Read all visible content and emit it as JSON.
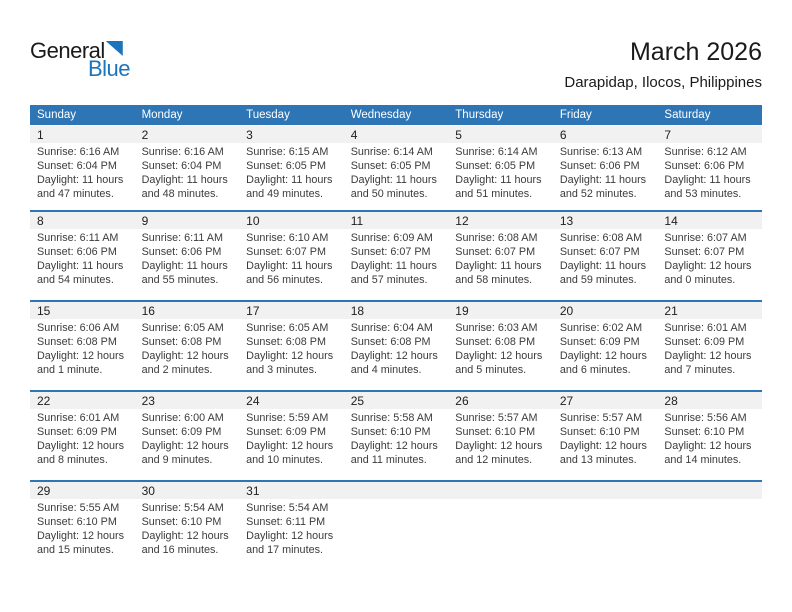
{
  "logo": {
    "word_top": "General",
    "word_bottom": "Blue"
  },
  "header": {
    "title": "March 2026",
    "subtitle": "Darapidap, Ilocos, Philippines"
  },
  "colors": {
    "header_bg": "#2E75B6",
    "separator": "#2E75B6",
    "band_bg": "#F1F1F1",
    "logo_blue": "#1C75BC",
    "text": "#3B3B3B",
    "title": "#1A1A1A",
    "header_text": "#FFFFFF"
  },
  "calendar": {
    "day_headers": [
      "Sunday",
      "Monday",
      "Tuesday",
      "Wednesday",
      "Thursday",
      "Friday",
      "Saturday"
    ],
    "weeks": [
      {
        "cells": [
          {
            "day": "1",
            "sunrise": "Sunrise: 6:16 AM",
            "sunset": "Sunset: 6:04 PM",
            "daylight_line1": "Daylight: 11 hours",
            "daylight_line2": "and 47 minutes."
          },
          {
            "day": "2",
            "sunrise": "Sunrise: 6:16 AM",
            "sunset": "Sunset: 6:04 PM",
            "daylight_line1": "Daylight: 11 hours",
            "daylight_line2": "and 48 minutes."
          },
          {
            "day": "3",
            "sunrise": "Sunrise: 6:15 AM",
            "sunset": "Sunset: 6:05 PM",
            "daylight_line1": "Daylight: 11 hours",
            "daylight_line2": "and 49 minutes."
          },
          {
            "day": "4",
            "sunrise": "Sunrise: 6:14 AM",
            "sunset": "Sunset: 6:05 PM",
            "daylight_line1": "Daylight: 11 hours",
            "daylight_line2": "and 50 minutes."
          },
          {
            "day": "5",
            "sunrise": "Sunrise: 6:14 AM",
            "sunset": "Sunset: 6:05 PM",
            "daylight_line1": "Daylight: 11 hours",
            "daylight_line2": "and 51 minutes."
          },
          {
            "day": "6",
            "sunrise": "Sunrise: 6:13 AM",
            "sunset": "Sunset: 6:06 PM",
            "daylight_line1": "Daylight: 11 hours",
            "daylight_line2": "and 52 minutes."
          },
          {
            "day": "7",
            "sunrise": "Sunrise: 6:12 AM",
            "sunset": "Sunset: 6:06 PM",
            "daylight_line1": "Daylight: 11 hours",
            "daylight_line2": "and 53 minutes."
          }
        ]
      },
      {
        "cells": [
          {
            "day": "8",
            "sunrise": "Sunrise: 6:11 AM",
            "sunset": "Sunset: 6:06 PM",
            "daylight_line1": "Daylight: 11 hours",
            "daylight_line2": "and 54 minutes."
          },
          {
            "day": "9",
            "sunrise": "Sunrise: 6:11 AM",
            "sunset": "Sunset: 6:06 PM",
            "daylight_line1": "Daylight: 11 hours",
            "daylight_line2": "and 55 minutes."
          },
          {
            "day": "10",
            "sunrise": "Sunrise: 6:10 AM",
            "sunset": "Sunset: 6:07 PM",
            "daylight_line1": "Daylight: 11 hours",
            "daylight_line2": "and 56 minutes."
          },
          {
            "day": "11",
            "sunrise": "Sunrise: 6:09 AM",
            "sunset": "Sunset: 6:07 PM",
            "daylight_line1": "Daylight: 11 hours",
            "daylight_line2": "and 57 minutes."
          },
          {
            "day": "12",
            "sunrise": "Sunrise: 6:08 AM",
            "sunset": "Sunset: 6:07 PM",
            "daylight_line1": "Daylight: 11 hours",
            "daylight_line2": "and 58 minutes."
          },
          {
            "day": "13",
            "sunrise": "Sunrise: 6:08 AM",
            "sunset": "Sunset: 6:07 PM",
            "daylight_line1": "Daylight: 11 hours",
            "daylight_line2": "and 59 minutes."
          },
          {
            "day": "14",
            "sunrise": "Sunrise: 6:07 AM",
            "sunset": "Sunset: 6:07 PM",
            "daylight_line1": "Daylight: 12 hours",
            "daylight_line2": "and 0 minutes."
          }
        ]
      },
      {
        "cells": [
          {
            "day": "15",
            "sunrise": "Sunrise: 6:06 AM",
            "sunset": "Sunset: 6:08 PM",
            "daylight_line1": "Daylight: 12 hours",
            "daylight_line2": "and 1 minute."
          },
          {
            "day": "16",
            "sunrise": "Sunrise: 6:05 AM",
            "sunset": "Sunset: 6:08 PM",
            "daylight_line1": "Daylight: 12 hours",
            "daylight_line2": "and 2 minutes."
          },
          {
            "day": "17",
            "sunrise": "Sunrise: 6:05 AM",
            "sunset": "Sunset: 6:08 PM",
            "daylight_line1": "Daylight: 12 hours",
            "daylight_line2": "and 3 minutes."
          },
          {
            "day": "18",
            "sunrise": "Sunrise: 6:04 AM",
            "sunset": "Sunset: 6:08 PM",
            "daylight_line1": "Daylight: 12 hours",
            "daylight_line2": "and 4 minutes."
          },
          {
            "day": "19",
            "sunrise": "Sunrise: 6:03 AM",
            "sunset": "Sunset: 6:08 PM",
            "daylight_line1": "Daylight: 12 hours",
            "daylight_line2": "and 5 minutes."
          },
          {
            "day": "20",
            "sunrise": "Sunrise: 6:02 AM",
            "sunset": "Sunset: 6:09 PM",
            "daylight_line1": "Daylight: 12 hours",
            "daylight_line2": "and 6 minutes."
          },
          {
            "day": "21",
            "sunrise": "Sunrise: 6:01 AM",
            "sunset": "Sunset: 6:09 PM",
            "daylight_line1": "Daylight: 12 hours",
            "daylight_line2": "and 7 minutes."
          }
        ]
      },
      {
        "cells": [
          {
            "day": "22",
            "sunrise": "Sunrise: 6:01 AM",
            "sunset": "Sunset: 6:09 PM",
            "daylight_line1": "Daylight: 12 hours",
            "daylight_line2": "and 8 minutes."
          },
          {
            "day": "23",
            "sunrise": "Sunrise: 6:00 AM",
            "sunset": "Sunset: 6:09 PM",
            "daylight_line1": "Daylight: 12 hours",
            "daylight_line2": "and 9 minutes."
          },
          {
            "day": "24",
            "sunrise": "Sunrise: 5:59 AM",
            "sunset": "Sunset: 6:09 PM",
            "daylight_line1": "Daylight: 12 hours",
            "daylight_line2": "and 10 minutes."
          },
          {
            "day": "25",
            "sunrise": "Sunrise: 5:58 AM",
            "sunset": "Sunset: 6:10 PM",
            "daylight_line1": "Daylight: 12 hours",
            "daylight_line2": "and 11 minutes."
          },
          {
            "day": "26",
            "sunrise": "Sunrise: 5:57 AM",
            "sunset": "Sunset: 6:10 PM",
            "daylight_line1": "Daylight: 12 hours",
            "daylight_line2": "and 12 minutes."
          },
          {
            "day": "27",
            "sunrise": "Sunrise: 5:57 AM",
            "sunset": "Sunset: 6:10 PM",
            "daylight_line1": "Daylight: 12 hours",
            "daylight_line2": "and 13 minutes."
          },
          {
            "day": "28",
            "sunrise": "Sunrise: 5:56 AM",
            "sunset": "Sunset: 6:10 PM",
            "daylight_line1": "Daylight: 12 hours",
            "daylight_line2": "and 14 minutes."
          }
        ]
      },
      {
        "cells": [
          {
            "day": "29",
            "sunrise": "Sunrise: 5:55 AM",
            "sunset": "Sunset: 6:10 PM",
            "daylight_line1": "Daylight: 12 hours",
            "daylight_line2": "and 15 minutes."
          },
          {
            "day": "30",
            "sunrise": "Sunrise: 5:54 AM",
            "sunset": "Sunset: 6:10 PM",
            "daylight_line1": "Daylight: 12 hours",
            "daylight_line2": "and 16 minutes."
          },
          {
            "day": "31",
            "sunrise": "Sunrise: 5:54 AM",
            "sunset": "Sunset: 6:11 PM",
            "daylight_line1": "Daylight: 12 hours",
            "daylight_line2": "and 17 minutes."
          },
          {
            "day": ""
          },
          {
            "day": ""
          },
          {
            "day": ""
          },
          {
            "day": ""
          }
        ]
      }
    ]
  }
}
